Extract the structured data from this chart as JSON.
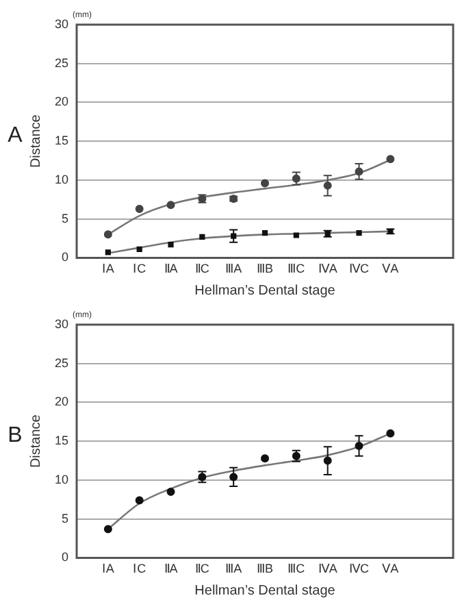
{
  "chart_data": [
    {
      "type": "scatter",
      "title": "A",
      "xlabel": "Hellman’s Dental stage",
      "ylabel": "Distance",
      "annotations": [
        "(mm)"
      ],
      "categories": [
        "ⅠA",
        "ⅠC",
        "ⅡA",
        "ⅡC",
        "ⅢA",
        "ⅢB",
        "ⅢC",
        "ⅣA",
        "ⅣC",
        "ⅤA"
      ],
      "ylim": [
        0,
        30
      ],
      "yticks": [
        0,
        5,
        10,
        15,
        20,
        25,
        30
      ],
      "grid": "y",
      "legend": false,
      "series": [
        {
          "type": "scatter",
          "marker": "circle",
          "color": "#444444",
          "values": [
            3.0,
            6.3,
            6.8,
            7.6,
            7.6,
            9.6,
            10.2,
            9.3,
            11.1,
            12.7
          ],
          "errors": [
            null,
            null,
            null,
            0.5,
            0.3,
            null,
            0.8,
            1.3,
            1.0,
            null
          ]
        },
        {
          "type": "line",
          "color": "#777777",
          "values": [
            3.0,
            5.4,
            6.9,
            7.8,
            8.4,
            8.9,
            9.4,
            10.0,
            10.9,
            12.6
          ]
        },
        {
          "type": "scatter",
          "marker": "square",
          "color": "#111111",
          "values": [
            0.7,
            1.1,
            1.7,
            2.7,
            2.8,
            3.2,
            2.9,
            3.1,
            3.2,
            3.4
          ],
          "errors": [
            null,
            null,
            null,
            null,
            0.8,
            null,
            null,
            0.4,
            null,
            0.3
          ]
        },
        {
          "type": "line",
          "color": "#777777",
          "values": [
            0.6,
            1.3,
            2.0,
            2.5,
            2.8,
            3.0,
            3.1,
            3.2,
            3.3,
            3.4
          ]
        }
      ]
    },
    {
      "type": "scatter",
      "title": "B",
      "xlabel": "Hellman’s Dental stage",
      "ylabel": "Distance",
      "annotations": [
        "(mm)"
      ],
      "categories": [
        "ⅠA",
        "ⅠC",
        "ⅡA",
        "ⅡC",
        "ⅢA",
        "ⅢB",
        "ⅢC",
        "ⅣA",
        "ⅣC",
        "ⅤA"
      ],
      "ylim": [
        0,
        30
      ],
      "yticks": [
        0,
        5,
        10,
        15,
        20,
        25,
        30
      ],
      "grid": "y",
      "legend": false,
      "series": [
        {
          "type": "scatter",
          "marker": "circle",
          "color": "#111111",
          "values": [
            3.7,
            7.4,
            8.5,
            10.4,
            10.4,
            12.8,
            13.1,
            12.5,
            14.4,
            16.0
          ],
          "errors": [
            null,
            null,
            null,
            0.7,
            1.2,
            null,
            0.7,
            1.8,
            1.3,
            null
          ]
        },
        {
          "type": "line",
          "color": "#777777",
          "values": [
            3.7,
            7.0,
            8.9,
            10.3,
            11.2,
            11.9,
            12.5,
            13.2,
            14.3,
            16.0
          ]
        }
      ]
    }
  ]
}
